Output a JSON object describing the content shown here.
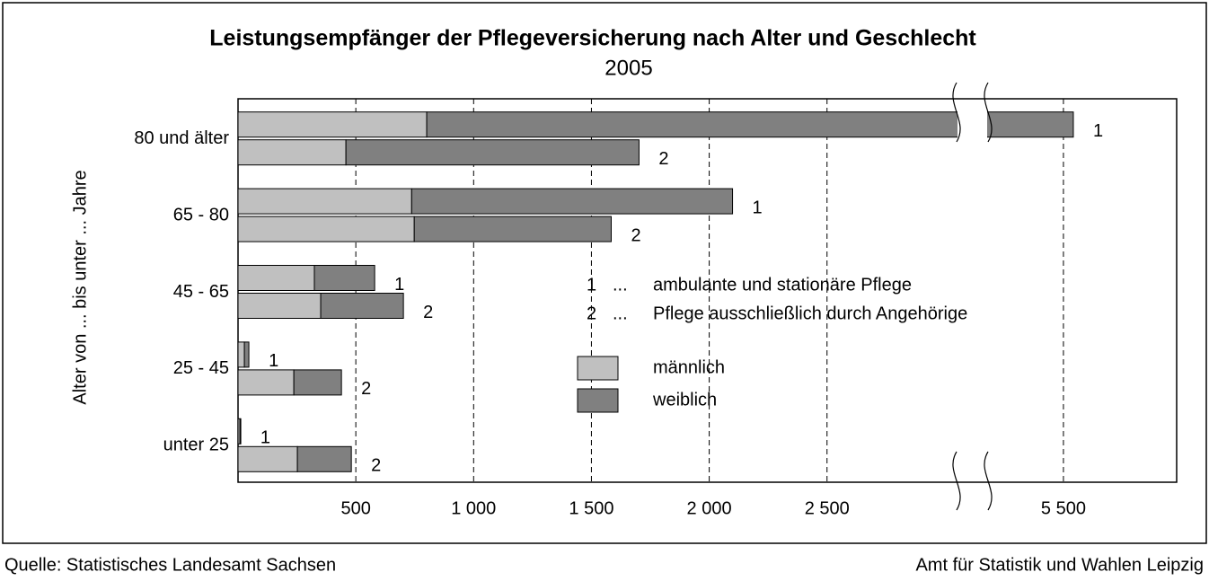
{
  "chart_data": {
    "type": "bar",
    "orientation": "horizontal",
    "title": "Leistungsempfänger der Pflegeversicherung nach Alter und Geschlecht",
    "subtitle": "2005",
    "y_label": "Alter von ... bis unter ... Jahre",
    "categories": [
      "80 und älter",
      "65 - 80",
      "45 - 65",
      "25 - 45",
      "unter 25"
    ],
    "bar_labels": [
      "1",
      "2"
    ],
    "series": [
      {
        "name": "männlich",
        "color": "#c0c0c0",
        "values": [
          [
            801,
            458
          ],
          [
            737,
            748
          ],
          [
            324,
            351
          ],
          [
            27,
            237
          ],
          [
            8,
            252
          ]
        ]
      },
      {
        "name": "weiblich",
        "color": "#808080",
        "values": [
          [
            4741,
            1244
          ],
          [
            1362,
            836
          ],
          [
            256,
            351
          ],
          [
            19,
            202
          ],
          [
            3,
            229
          ]
        ]
      }
    ],
    "notes": [
      {
        "key": "1",
        "dots": "...",
        "text": "ambulante und stationäre Pflege"
      },
      {
        "key": "2",
        "dots": "...",
        "text": "Pflege ausschließlich durch Angehörige"
      }
    ],
    "xlim": [
      0,
      5980
    ],
    "xbreak": [
      3050,
      5180
    ],
    "xticks": [
      500,
      {
        "value": 1000,
        "label": "1 000"
      },
      {
        "value": 1500,
        "label": "1 500"
      },
      {
        "value": 2000,
        "label": "2 000"
      },
      {
        "value": 2500,
        "label": "2 500"
      },
      {
        "value": 5500,
        "label": "5 500"
      }
    ],
    "grid": true,
    "source": "Quelle: Statistisches Landesamt Sachsen",
    "publisher": "Amt für Statistik und Wahlen Leipzig"
  }
}
